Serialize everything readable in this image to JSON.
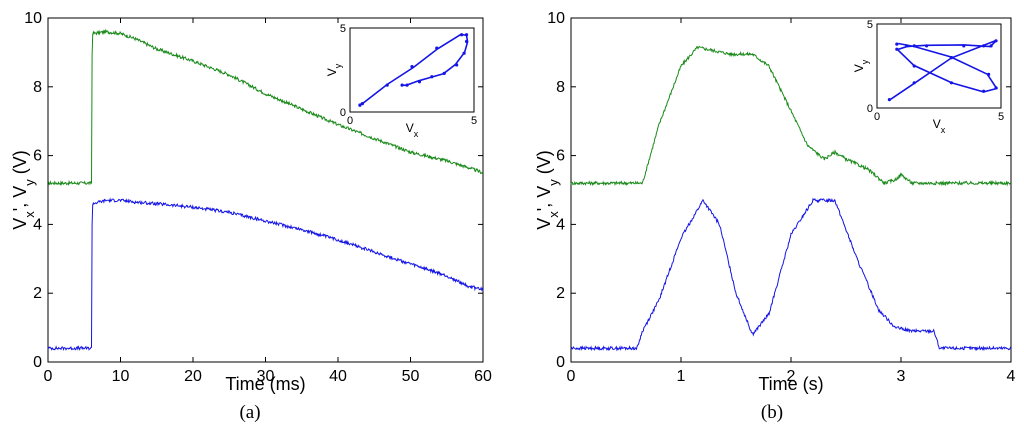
{
  "figure": {
    "captions": [
      "(a)",
      "(b)"
    ]
  },
  "chart_data": [
    {
      "type": "line",
      "panel": "(a)",
      "xlabel": "Time (ms)",
      "ylabel": "V_x', V_y (V)",
      "xlim": [
        0,
        60
      ],
      "ylim": [
        0,
        10
      ],
      "xticks": [
        "0",
        "10",
        "20",
        "30",
        "40",
        "50",
        "60"
      ],
      "yticks": [
        "0",
        "2",
        "4",
        "6",
        "8",
        "10"
      ],
      "grid": false,
      "series": [
        {
          "color": "#1a8a1a",
          "x": [
            0,
            6,
            6.1,
            8,
            10,
            12,
            15,
            20,
            25,
            30,
            35,
            40,
            45,
            50,
            55,
            58,
            60
          ],
          "y": [
            5.2,
            5.2,
            9.55,
            9.6,
            9.55,
            9.4,
            9.1,
            8.75,
            8.35,
            7.8,
            7.35,
            6.9,
            6.5,
            6.1,
            5.85,
            5.65,
            5.5
          ]
        },
        {
          "color": "#1414e6",
          "x": [
            0,
            6,
            6.1,
            8,
            10,
            12,
            15,
            20,
            25,
            30,
            35,
            40,
            45,
            50,
            55,
            58,
            60
          ],
          "y": [
            0.4,
            0.4,
            4.6,
            4.7,
            4.7,
            4.65,
            4.6,
            4.5,
            4.35,
            4.1,
            3.85,
            3.55,
            3.2,
            2.85,
            2.5,
            2.2,
            2.1
          ]
        }
      ],
      "inset": {
        "xlabel": "V_x",
        "ylabel": "V_y",
        "xlim": [
          0,
          5
        ],
        "ylim": [
          0,
          5
        ],
        "xticks": [
          "0",
          "5"
        ],
        "yticks": [
          "0",
          "5"
        ],
        "color": "#1414e6",
        "x": [
          0.4,
          0.5,
          1.5,
          2.5,
          3.5,
          4.5,
          4.7,
          4.7,
          4.6,
          4.3,
          3.8,
          3.3,
          2.8,
          2.3,
          2.1
        ],
        "y": [
          0.4,
          0.5,
          1.6,
          2.7,
          3.8,
          4.6,
          4.6,
          4.2,
          3.5,
          2.8,
          2.3,
          2.1,
          1.8,
          1.6,
          1.6
        ]
      }
    },
    {
      "type": "line",
      "panel": "(b)",
      "xlabel": "Time (s)",
      "ylabel": "V_x', V_y (V)",
      "xlim": [
        0,
        4
      ],
      "ylim": [
        0,
        10
      ],
      "xticks": [
        "0",
        "1",
        "2",
        "3",
        "4"
      ],
      "yticks": [
        "0",
        "2",
        "4",
        "6",
        "8",
        "10"
      ],
      "grid": false,
      "series": [
        {
          "color": "#1a8a1a",
          "x": [
            0,
            0.65,
            0.8,
            1.0,
            1.15,
            1.3,
            1.45,
            1.65,
            1.8,
            2.0,
            2.15,
            2.3,
            2.4,
            2.5,
            2.7,
            2.85,
            2.95,
            3.0,
            3.1,
            3.3,
            4.0
          ],
          "y": [
            5.2,
            5.2,
            6.9,
            8.6,
            9.15,
            9.05,
            8.95,
            8.95,
            8.6,
            7.3,
            6.3,
            5.9,
            6.1,
            5.9,
            5.6,
            5.2,
            5.3,
            5.45,
            5.2,
            5.2,
            5.2
          ]
        },
        {
          "color": "#1414e6",
          "x": [
            0,
            0.6,
            0.65,
            0.8,
            1.0,
            1.2,
            1.35,
            1.5,
            1.65,
            1.8,
            2.0,
            2.2,
            2.4,
            2.6,
            2.8,
            2.95,
            3.1,
            3.3,
            3.35,
            4.0
          ],
          "y": [
            0.4,
            0.4,
            0.9,
            1.8,
            3.6,
            4.7,
            4.0,
            2.0,
            0.8,
            1.4,
            3.7,
            4.7,
            4.7,
            3.0,
            1.5,
            1.0,
            0.9,
            0.9,
            0.4,
            0.4
          ]
        }
      ],
      "inset": {
        "xlabel": "V_x",
        "ylabel": "V_y",
        "xlim": [
          0,
          5
        ],
        "ylim": [
          0,
          5
        ],
        "xticks": [
          "0",
          "5"
        ],
        "yticks": [
          "0",
          "5"
        ],
        "color": "#1414e6",
        "x": [
          0.5,
          1.5,
          3.0,
          4.3,
          4.8,
          4.6,
          3.5,
          2.0,
          1.2,
          0.8,
          1.5,
          3.0,
          4.3,
          4.8,
          4.5,
          3.0,
          1.5,
          0.8
        ],
        "y": [
          0.5,
          1.5,
          3.0,
          3.7,
          4.0,
          3.7,
          3.7,
          3.7,
          3.7,
          3.5,
          2.5,
          1.5,
          1.0,
          1.2,
          2.0,
          3.0,
          3.7,
          3.8
        ]
      }
    }
  ]
}
